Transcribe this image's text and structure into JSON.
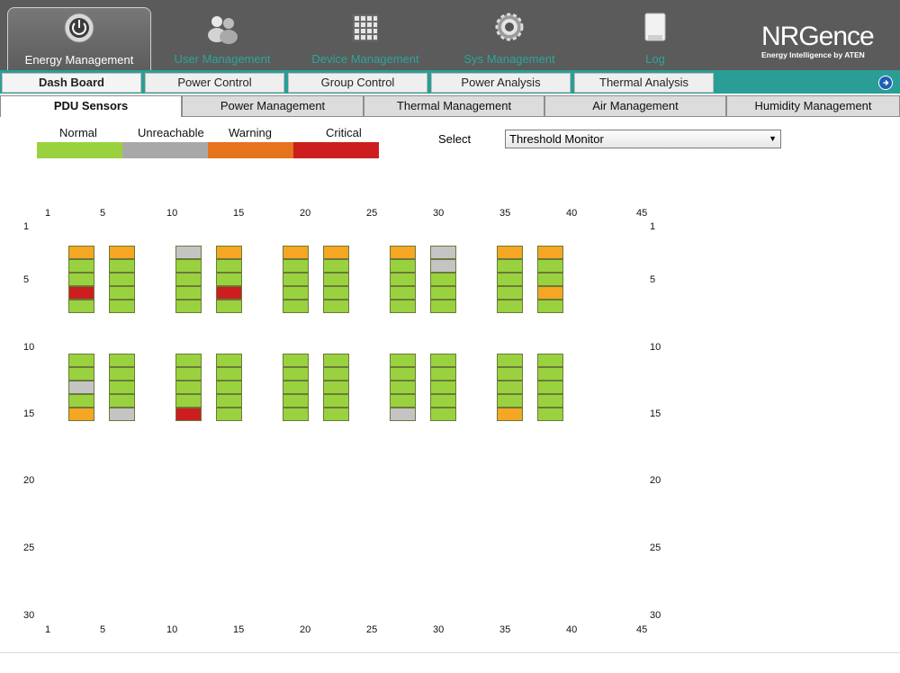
{
  "header": {
    "tabs": [
      {
        "label": "Energy Management",
        "icon": "power-icon",
        "active": true
      },
      {
        "label": "User Management",
        "icon": "users-icon",
        "active": false
      },
      {
        "label": "Device Management",
        "icon": "device-grid-icon",
        "active": false
      },
      {
        "label": "Sys Management",
        "icon": "gear-icon",
        "active": false
      },
      {
        "label": "Log",
        "icon": "log-icon",
        "active": false
      }
    ],
    "logo": {
      "brand": "NRGence",
      "tagline": "Energy Intelligence by ATEN"
    }
  },
  "subnav": {
    "tabs": [
      "Dash Board",
      "Power Control",
      "Group Control",
      "Power Analysis",
      "Thermal Analysis"
    ],
    "active": "Dash Board"
  },
  "sensor_tabs": {
    "tabs": [
      "PDU Sensors",
      "Power Management",
      "Thermal Management",
      "Air Management",
      "Humidity Management"
    ],
    "active": "PDU Sensors"
  },
  "legend": [
    {
      "label": "Normal",
      "color": "#9ad23f"
    },
    {
      "label": "Unreachable",
      "color": "#a8a8a8"
    },
    {
      "label": "Warning",
      "color": "#e6731e"
    },
    {
      "label": "Critical",
      "color": "#cc1e1e"
    }
  ],
  "select": {
    "label": "Select",
    "value": "Threshold Monitor"
  },
  "grid": {
    "x_ticks": [
      "1",
      "5",
      "10",
      "15",
      "20",
      "25",
      "30",
      "35",
      "40",
      "45"
    ],
    "y_ticks": [
      "1",
      "5",
      "10",
      "15",
      "20",
      "25",
      "30"
    ],
    "status_colors": {
      "N": "#9ad23f",
      "U": "#c4c4c4",
      "W": "#f5a623",
      "C": "#cc1e1e"
    },
    "racks": [
      {
        "row": 1,
        "col": 1,
        "cells": [
          "W",
          "N",
          "N",
          "C",
          "N"
        ]
      },
      {
        "row": 1,
        "col": 2,
        "cells": [
          "W",
          "N",
          "N",
          "N",
          "N"
        ]
      },
      {
        "row": 1,
        "col": 3,
        "cells": [
          "U",
          "N",
          "N",
          "N",
          "N"
        ]
      },
      {
        "row": 1,
        "col": 4,
        "cells": [
          "W",
          "N",
          "N",
          "C",
          "N"
        ]
      },
      {
        "row": 1,
        "col": 5,
        "cells": [
          "W",
          "N",
          "N",
          "N",
          "N"
        ]
      },
      {
        "row": 1,
        "col": 6,
        "cells": [
          "W",
          "N",
          "N",
          "N",
          "N"
        ]
      },
      {
        "row": 1,
        "col": 7,
        "cells": [
          "W",
          "N",
          "N",
          "N",
          "N"
        ]
      },
      {
        "row": 1,
        "col": 8,
        "cells": [
          "U",
          "U",
          "N",
          "N",
          "N"
        ]
      },
      {
        "row": 1,
        "col": 9,
        "cells": [
          "W",
          "N",
          "N",
          "N",
          "N"
        ]
      },
      {
        "row": 1,
        "col": 10,
        "cells": [
          "W",
          "N",
          "N",
          "W",
          "N"
        ]
      },
      {
        "row": 2,
        "col": 1,
        "cells": [
          "N",
          "N",
          "U",
          "N",
          "W"
        ]
      },
      {
        "row": 2,
        "col": 2,
        "cells": [
          "N",
          "N",
          "N",
          "N",
          "U"
        ]
      },
      {
        "row": 2,
        "col": 3,
        "cells": [
          "N",
          "N",
          "N",
          "N",
          "C"
        ]
      },
      {
        "row": 2,
        "col": 4,
        "cells": [
          "N",
          "N",
          "N",
          "N",
          "N"
        ]
      },
      {
        "row": 2,
        "col": 5,
        "cells": [
          "N",
          "N",
          "N",
          "N",
          "N"
        ]
      },
      {
        "row": 2,
        "col": 6,
        "cells": [
          "N",
          "N",
          "N",
          "N",
          "N"
        ]
      },
      {
        "row": 2,
        "col": 7,
        "cells": [
          "N",
          "N",
          "N",
          "N",
          "U"
        ]
      },
      {
        "row": 2,
        "col": 8,
        "cells": [
          "N",
          "N",
          "N",
          "N",
          "N"
        ]
      },
      {
        "row": 2,
        "col": 9,
        "cells": [
          "N",
          "N",
          "N",
          "N",
          "W"
        ]
      },
      {
        "row": 2,
        "col": 10,
        "cells": [
          "N",
          "N",
          "N",
          "N",
          "N"
        ]
      }
    ]
  }
}
